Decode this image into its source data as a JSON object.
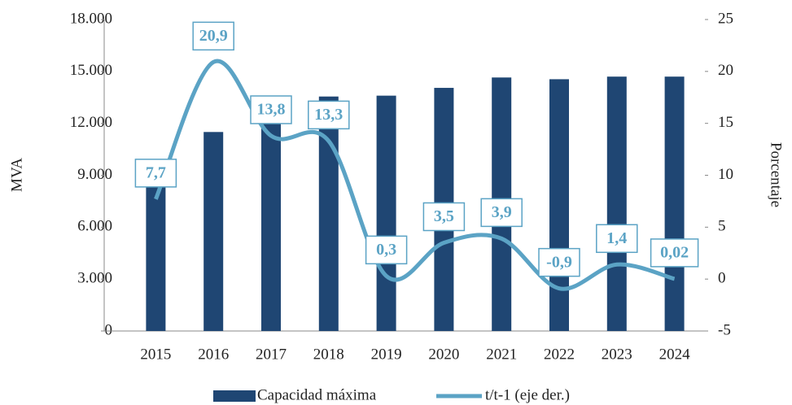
{
  "chart_data": {
    "type": "bar_line",
    "categories": [
      "2015",
      "2016",
      "2017",
      "2018",
      "2019",
      "2020",
      "2021",
      "2022",
      "2023",
      "2024"
    ],
    "series": [
      {
        "name": "Capacidad máxima",
        "type": "bar",
        "color": "#1f4673",
        "axis": "y",
        "values": [
          9500,
          11500,
          13100,
          13550,
          13600,
          14050,
          14650,
          14550,
          14700,
          14700
        ]
      },
      {
        "name": "t/t-1 (eje der.)",
        "type": "line",
        "color": "#5ba3c5",
        "axis": "y2",
        "values": [
          7.7,
          20.9,
          13.8,
          13.3,
          0.3,
          3.5,
          3.9,
          -0.9,
          1.4,
          0.02
        ],
        "value_labels": [
          "7,7",
          "20,9",
          "13,8",
          "13,3",
          "0,3",
          "3,5",
          "3,9",
          "-0,9",
          "1,4",
          "0,02"
        ]
      }
    ],
    "ylabel": "MVA",
    "y2label": "Porcentaje",
    "ylim": [
      0,
      18000
    ],
    "yticks": [
      0,
      {
        "value": 3000,
        "label": "3.000"
      },
      {
        "value": 6000,
        "label": "6.000"
      },
      {
        "value": 9000,
        "label": "9.000"
      },
      {
        "value": 12000,
        "label": "12.000"
      },
      {
        "value": 15000,
        "label": "15.000"
      },
      {
        "value": 18000,
        "label": "18.000"
      }
    ],
    "y2lim": [
      -5,
      25
    ],
    "y2ticks": [
      -5,
      0,
      5,
      10,
      15,
      20,
      25
    ],
    "legend": "bottom"
  }
}
